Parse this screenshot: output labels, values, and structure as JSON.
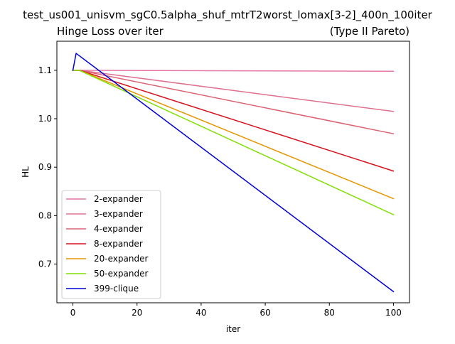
{
  "chart_data": {
    "type": "line",
    "suptitle": "test_us001_unisvm_sgC0.5alpha_shuf_mtrT2worst_lomax[3-2]_400n_100iter",
    "title": "Hinge Loss over iter",
    "title_right": "(Type II Pareto)",
    "xlabel": "iter",
    "ylabel": "HL",
    "xlim": [
      -5,
      105
    ],
    "ylim": [
      0.62,
      1.16
    ],
    "xticks": [
      0,
      20,
      40,
      60,
      80,
      100
    ],
    "yticks": [
      0.7,
      0.8,
      0.9,
      1.0,
      1.1
    ],
    "ytick_labels": [
      "0.7",
      "0.8",
      "0.9",
      "1.0",
      "1.1"
    ],
    "grid": false,
    "legend_position": "lower-left",
    "series": [
      {
        "name": "2-expander",
        "color": "#e377a6",
        "x": [
          0,
          100
        ],
        "y": [
          1.1,
          1.098
        ]
      },
      {
        "name": "3-expander",
        "color": "#e0708f",
        "x": [
          0,
          2,
          100
        ],
        "y": [
          1.1,
          1.1,
          1.015
        ]
      },
      {
        "name": "4-expander",
        "color": "#dc6272",
        "x": [
          0,
          2,
          100
        ],
        "y": [
          1.1,
          1.1,
          0.969
        ]
      },
      {
        "name": "8-expander",
        "color": "#d7111b",
        "x": [
          0,
          2,
          100
        ],
        "y": [
          1.1,
          1.1,
          0.892
        ]
      },
      {
        "name": "20-expander",
        "color": "#e69500",
        "x": [
          0,
          2,
          100
        ],
        "y": [
          1.1,
          1.1,
          0.835
        ]
      },
      {
        "name": "50-expander",
        "color": "#80e000",
        "x": [
          0,
          2,
          100
        ],
        "y": [
          1.1,
          1.1,
          0.802
        ]
      },
      {
        "name": "399-clique",
        "color": "#0000d8",
        "x": [
          0,
          1,
          100
        ],
        "y": [
          1.1,
          1.135,
          0.643
        ]
      }
    ]
  }
}
